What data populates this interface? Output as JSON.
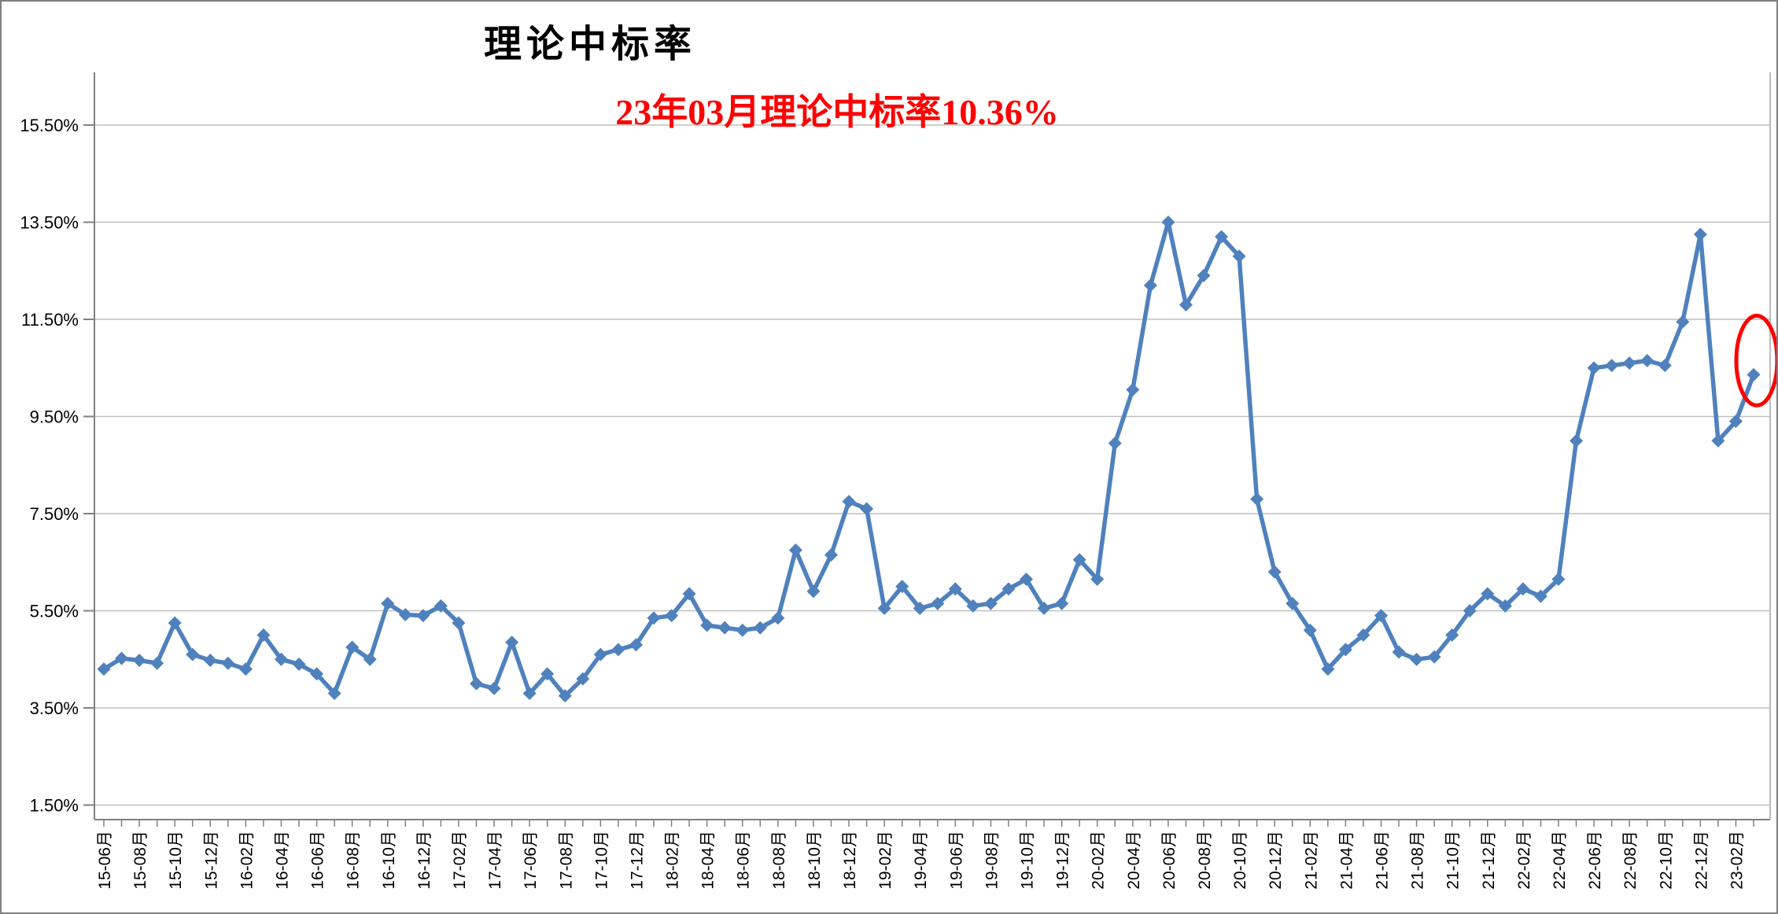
{
  "chart_data": {
    "type": "line",
    "title": "理论中标率",
    "annotation": "23年03月理论中标率10.36%",
    "annotation_color": "#FF0000",
    "line_color": "#4F81BD",
    "grid_color": "#BFBFBF",
    "axis_color": "#808080",
    "ylim": [
      1.5,
      15.5
    ],
    "y_tick_labels": [
      "15.50%",
      "13.50%",
      "11.50%",
      "9.50%",
      "7.50%",
      "5.50%",
      "3.50%",
      "1.50%"
    ],
    "y_tick_values": [
      15.5,
      13.5,
      11.5,
      9.5,
      7.5,
      5.5,
      3.5,
      1.5
    ],
    "xtick_every": 2,
    "xtick_suffix": "月",
    "grid": true,
    "legend": "none",
    "months": [
      "15-06",
      "15-07",
      "15-08",
      "15-09",
      "15-10",
      "15-11",
      "15-12",
      "16-01",
      "16-02",
      "16-03",
      "16-04",
      "16-05",
      "16-06",
      "16-07",
      "16-08",
      "16-09",
      "16-10",
      "16-11",
      "16-12",
      "17-01",
      "17-02",
      "17-03",
      "17-04",
      "17-05",
      "17-06",
      "17-07",
      "17-08",
      "17-09",
      "17-10",
      "17-11",
      "17-12",
      "18-01",
      "18-02",
      "18-03",
      "18-04",
      "18-05",
      "18-06",
      "18-07",
      "18-08",
      "18-09",
      "18-10",
      "18-11",
      "18-12",
      "19-01",
      "19-02",
      "19-03",
      "19-04",
      "19-05",
      "19-06",
      "19-07",
      "19-08",
      "19-09",
      "19-10",
      "19-11",
      "19-12",
      "20-01",
      "20-02",
      "20-03",
      "20-04",
      "20-05",
      "20-06",
      "20-07",
      "20-08",
      "20-09",
      "20-10",
      "20-11",
      "20-12",
      "21-01",
      "21-02",
      "21-03",
      "21-04",
      "21-05",
      "21-06",
      "21-07",
      "21-08",
      "21-09",
      "21-10",
      "21-11",
      "21-12",
      "22-01",
      "22-02",
      "22-03",
      "22-04",
      "22-05",
      "22-06",
      "22-07",
      "22-08",
      "22-09",
      "22-10",
      "22-11",
      "22-12",
      "23-01",
      "23-02",
      "23-03"
    ],
    "values": [
      4.3,
      4.52,
      4.48,
      4.42,
      5.25,
      4.6,
      4.48,
      4.42,
      4.3,
      5.0,
      4.5,
      4.4,
      4.2,
      3.8,
      4.75,
      4.5,
      5.65,
      5.42,
      5.4,
      5.6,
      5.25,
      4.0,
      3.9,
      4.85,
      3.8,
      4.2,
      3.75,
      4.1,
      4.6,
      4.7,
      4.8,
      5.35,
      5.4,
      5.85,
      5.2,
      5.15,
      5.1,
      5.15,
      5.35,
      6.75,
      5.9,
      6.65,
      7.75,
      7.6,
      5.55,
      6.0,
      5.55,
      5.65,
      5.95,
      5.6,
      5.65,
      5.95,
      6.15,
      5.55,
      5.65,
      6.55,
      6.15,
      8.95,
      10.05,
      12.2,
      13.5,
      11.8,
      12.4,
      13.2,
      12.8,
      7.8,
      6.3,
      5.65,
      5.1,
      4.3,
      4.7,
      5.0,
      5.4,
      4.65,
      4.5,
      4.55,
      5.0,
      5.5,
      5.85,
      5.6,
      5.95,
      5.8,
      6.15,
      9.0,
      10.5,
      10.55,
      10.6,
      10.65,
      10.55,
      11.45,
      13.25,
      9.0,
      9.4,
      10.36
    ],
    "highlight": {
      "month": "23-03",
      "value": 10.36,
      "shape": "ellipse",
      "color": "#FF0000"
    }
  }
}
